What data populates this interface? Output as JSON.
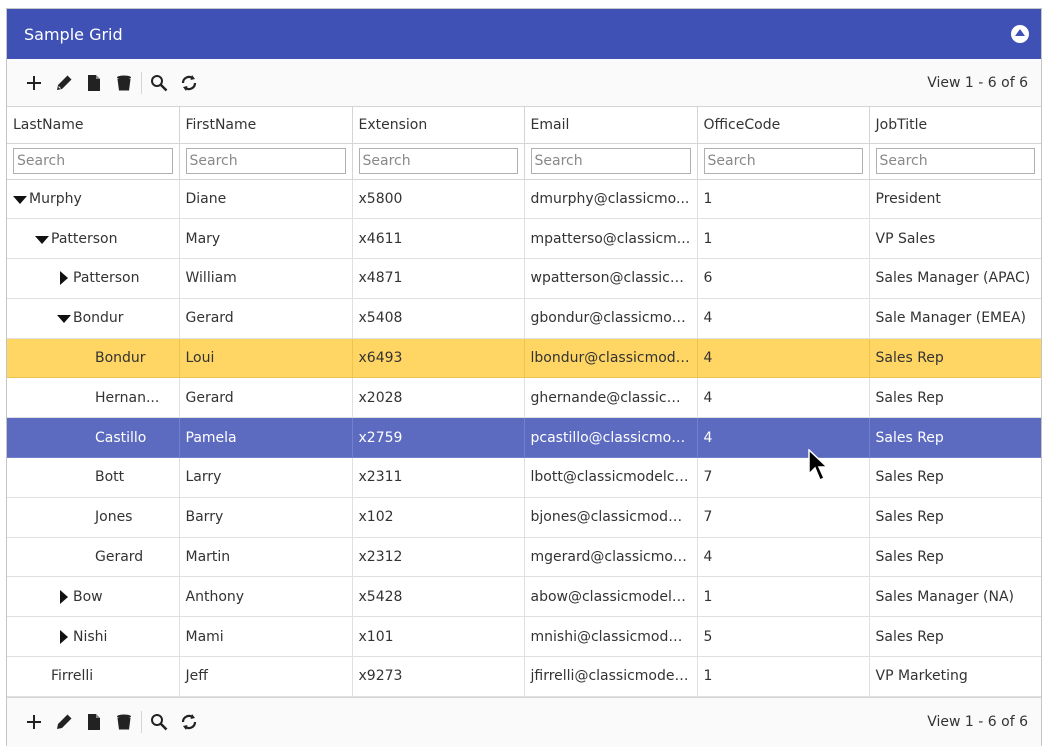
{
  "caption": {
    "title": "Sample Grid"
  },
  "pager": {
    "records": "View 1 - 6 of 6"
  },
  "columns": [
    "LastName",
    "FirstName",
    "Extension",
    "Email",
    "OfficeCode",
    "JobTitle"
  ],
  "filter_placeholder": "Search",
  "icons": [
    "plus-icon",
    "pencil-icon",
    "document-icon",
    "trash-icon",
    "search-icon",
    "refresh-icon"
  ],
  "colors": {
    "header": "#3f51b5",
    "selected": "#5c6bc0",
    "hover": "#ffd563"
  },
  "rows": [
    {
      "level": 0,
      "expander": "open",
      "state": "",
      "cells": [
        "Murphy",
        "Diane",
        "x5800",
        "dmurphy@classicmo...",
        "1",
        "President"
      ]
    },
    {
      "level": 1,
      "expander": "open",
      "state": "",
      "cells": [
        "Patterson",
        "Mary",
        "x4611",
        "mpatterso@classicm...",
        "1",
        "VP Sales"
      ]
    },
    {
      "level": 2,
      "expander": "closed",
      "state": "",
      "cells": [
        "Patterson",
        "William",
        "x4871",
        "wpatterson@classicm...",
        "6",
        "Sales Manager (APAC)"
      ]
    },
    {
      "level": 2,
      "expander": "open",
      "state": "",
      "cells": [
        "Bondur",
        "Gerard",
        "x5408",
        "gbondur@classicmod...",
        "4",
        "Sale Manager (EMEA)"
      ]
    },
    {
      "level": 3,
      "expander": "none",
      "state": "hover",
      "cells": [
        "Bondur",
        "Loui",
        "x6493",
        "lbondur@classicmodel...",
        "4",
        "Sales Rep"
      ]
    },
    {
      "level": 3,
      "expander": "none",
      "state": "",
      "cells": [
        "Hernan...",
        "Gerard",
        "x2028",
        "ghernande@classicm...",
        "4",
        "Sales Rep"
      ]
    },
    {
      "level": 3,
      "expander": "none",
      "state": "selected",
      "cells": [
        "Castillo",
        "Pamela",
        "x2759",
        "pcastillo@classicmode...",
        "4",
        "Sales Rep"
      ]
    },
    {
      "level": 3,
      "expander": "none",
      "state": "",
      "cells": [
        "Bott",
        "Larry",
        "x2311",
        "lbott@classicmodelca...",
        "7",
        "Sales Rep"
      ]
    },
    {
      "level": 3,
      "expander": "none",
      "state": "",
      "cells": [
        "Jones",
        "Barry",
        "x102",
        "bjones@classicmodel...",
        "7",
        "Sales Rep"
      ]
    },
    {
      "level": 3,
      "expander": "none",
      "state": "",
      "cells": [
        "Gerard",
        "Martin",
        "x2312",
        "mgerard@classicmod...",
        "4",
        "Sales Rep"
      ]
    },
    {
      "level": 2,
      "expander": "closed",
      "state": "",
      "cells": [
        "Bow",
        "Anthony",
        "x5428",
        "abow@classicmodelc...",
        "1",
        "Sales Manager (NA)"
      ]
    },
    {
      "level": 2,
      "expander": "closed",
      "state": "",
      "cells": [
        "Nishi",
        "Mami",
        "x101",
        "mnishi@classicmodelc...",
        "5",
        "Sales Rep"
      ]
    },
    {
      "level": 1,
      "expander": "none",
      "state": "",
      "cells": [
        "Firrelli",
        "Jeff",
        "x9273",
        "jfirrelli@classicmodelc...",
        "1",
        "VP Marketing"
      ]
    }
  ]
}
